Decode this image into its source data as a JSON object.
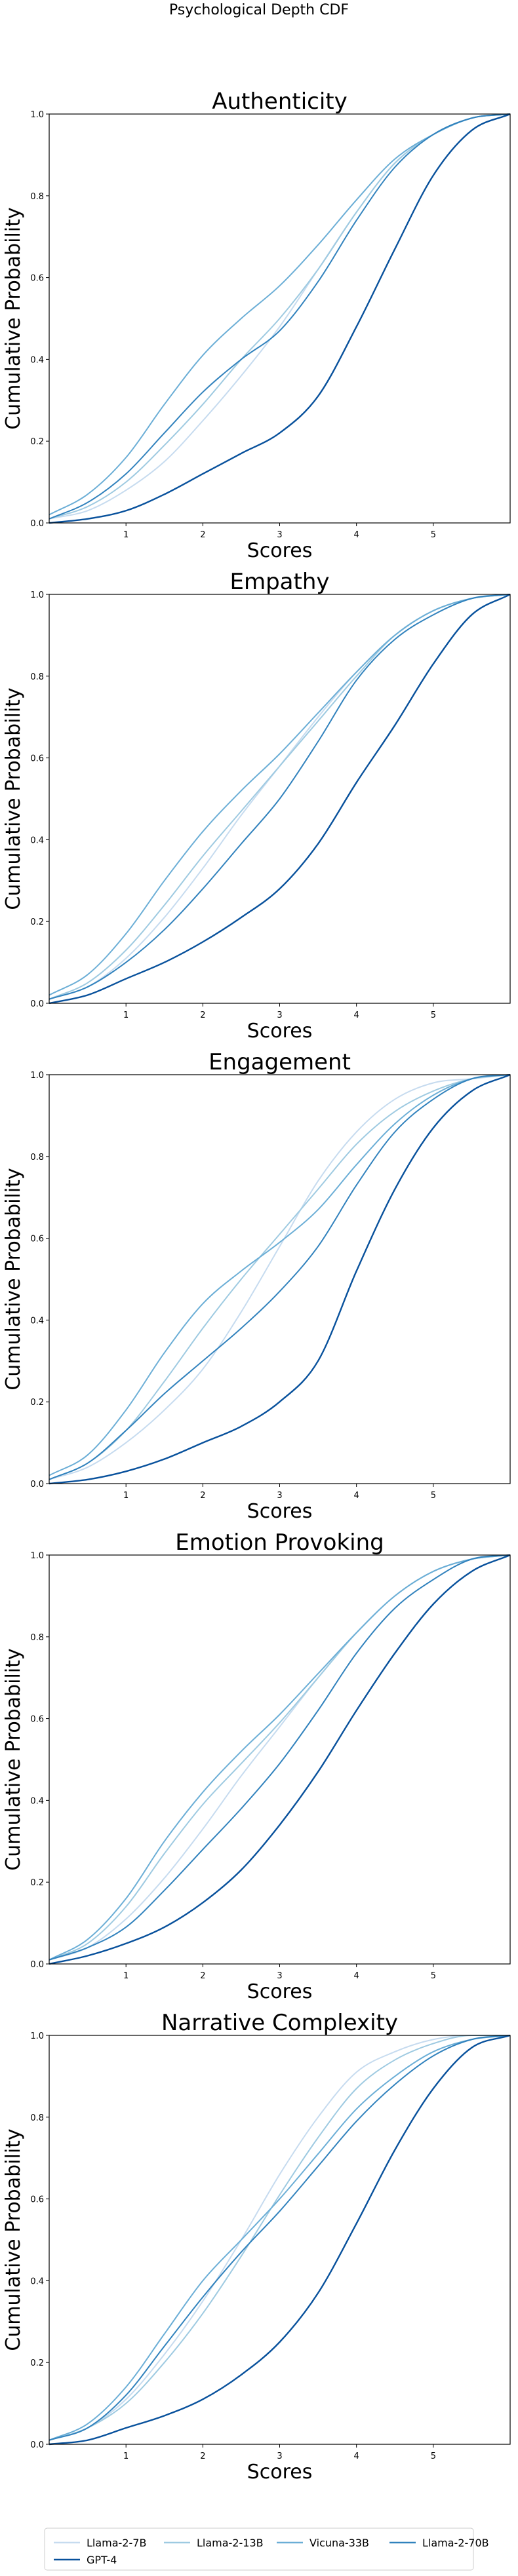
{
  "figure": {
    "suptitle": "Psychological Depth CDF"
  },
  "legend": {
    "placement": "bottom-center",
    "columns": 4,
    "entries": [
      {
        "name": "Llama-2-7B",
        "color": "#c6dbef"
      },
      {
        "name": "Llama-2-13B",
        "color": "#9ecae1"
      },
      {
        "name": "Vicuna-33B",
        "color": "#6baed6"
      },
      {
        "name": "Llama-2-70B",
        "color": "#3182bd"
      },
      {
        "name": "GPT-4",
        "color": "#08519c"
      }
    ]
  },
  "chart_data": [
    {
      "type": "line",
      "title": "Authenticity",
      "xlabel": "Scores",
      "ylabel": "Cumulative Probability",
      "xlim": [
        0,
        6
      ],
      "ylim": [
        0,
        1
      ],
      "xticks": [
        "1",
        "2",
        "3",
        "4",
        "5"
      ],
      "yticks": [
        "0.0",
        "0.2",
        "0.4",
        "0.6",
        "0.8",
        "1.0"
      ],
      "grid": false,
      "x": [
        0,
        0.5,
        1,
        1.5,
        2,
        2.5,
        3,
        3.5,
        4,
        4.5,
        5,
        5.5,
        6
      ],
      "series": [
        {
          "name": "Llama-2-7B",
          "color": "#c6dbef",
          "values": [
            0.01,
            0.03,
            0.08,
            0.15,
            0.25,
            0.36,
            0.48,
            0.62,
            0.76,
            0.88,
            0.95,
            0.99,
            1.0
          ]
        },
        {
          "name": "Llama-2-13B",
          "color": "#9ecae1",
          "values": [
            0.01,
            0.04,
            0.1,
            0.19,
            0.29,
            0.4,
            0.5,
            0.62,
            0.76,
            0.88,
            0.95,
            0.99,
            1.0
          ]
        },
        {
          "name": "Vicuna-33B",
          "color": "#6baed6",
          "values": [
            0.02,
            0.07,
            0.16,
            0.29,
            0.41,
            0.5,
            0.58,
            0.68,
            0.79,
            0.89,
            0.95,
            0.99,
            1.0
          ]
        },
        {
          "name": "Llama-2-70B",
          "color": "#3182bd",
          "values": [
            0.01,
            0.05,
            0.12,
            0.22,
            0.32,
            0.4,
            0.47,
            0.59,
            0.74,
            0.87,
            0.95,
            0.99,
            1.0
          ]
        },
        {
          "name": "GPT-4",
          "color": "#08519c",
          "values": [
            0.0,
            0.01,
            0.03,
            0.07,
            0.12,
            0.17,
            0.22,
            0.31,
            0.48,
            0.67,
            0.85,
            0.96,
            1.0
          ]
        }
      ]
    },
    {
      "type": "line",
      "title": "Empathy",
      "xlabel": "Scores",
      "ylabel": "Cumulative Probability",
      "xlim": [
        0,
        6
      ],
      "ylim": [
        0,
        1
      ],
      "xticks": [
        "1",
        "2",
        "3",
        "4",
        "5"
      ],
      "yticks": [
        "0.0",
        "0.2",
        "0.4",
        "0.6",
        "0.8",
        "1.0"
      ],
      "grid": false,
      "x": [
        0,
        0.5,
        1,
        1.5,
        2,
        2.5,
        3,
        3.5,
        4,
        4.5,
        5,
        5.5,
        6
      ],
      "series": [
        {
          "name": "Llama-2-7B",
          "color": "#c6dbef",
          "values": [
            0.01,
            0.04,
            0.11,
            0.21,
            0.33,
            0.46,
            0.58,
            0.7,
            0.81,
            0.9,
            0.96,
            0.99,
            1.0
          ]
        },
        {
          "name": "Llama-2-13B",
          "color": "#9ecae1",
          "values": [
            0.01,
            0.05,
            0.13,
            0.24,
            0.36,
            0.47,
            0.58,
            0.69,
            0.8,
            0.9,
            0.96,
            0.99,
            1.0
          ]
        },
        {
          "name": "Vicuna-33B",
          "color": "#6baed6",
          "values": [
            0.02,
            0.07,
            0.17,
            0.3,
            0.42,
            0.52,
            0.61,
            0.71,
            0.81,
            0.9,
            0.96,
            0.99,
            1.0
          ]
        },
        {
          "name": "Llama-2-70B",
          "color": "#3182bd",
          "values": [
            0.01,
            0.04,
            0.1,
            0.18,
            0.28,
            0.39,
            0.5,
            0.64,
            0.79,
            0.89,
            0.95,
            0.99,
            1.0
          ]
        },
        {
          "name": "GPT-4",
          "color": "#08519c",
          "values": [
            0.0,
            0.02,
            0.06,
            0.1,
            0.15,
            0.21,
            0.28,
            0.39,
            0.54,
            0.68,
            0.83,
            0.95,
            1.0
          ]
        }
      ]
    },
    {
      "type": "line",
      "title": "Engagement",
      "xlabel": "Scores",
      "ylabel": "Cumulative Probability",
      "xlim": [
        0,
        6
      ],
      "ylim": [
        0,
        1
      ],
      "xticks": [
        "1",
        "2",
        "3",
        "4",
        "5"
      ],
      "yticks": [
        "0.0",
        "0.2",
        "0.4",
        "0.6",
        "0.8",
        "1.0"
      ],
      "grid": false,
      "x": [
        0,
        0.5,
        1,
        1.5,
        2,
        2.5,
        3,
        3.5,
        4,
        4.5,
        5,
        5.5,
        6
      ],
      "series": [
        {
          "name": "Llama-2-7B",
          "color": "#c6dbef",
          "values": [
            0.01,
            0.04,
            0.1,
            0.18,
            0.28,
            0.42,
            0.58,
            0.74,
            0.86,
            0.94,
            0.98,
            0.99,
            1.0
          ]
        },
        {
          "name": "Llama-2-13B",
          "color": "#9ecae1",
          "values": [
            0.01,
            0.05,
            0.13,
            0.25,
            0.38,
            0.5,
            0.61,
            0.72,
            0.83,
            0.91,
            0.96,
            0.99,
            1.0
          ]
        },
        {
          "name": "Vicuna-33B",
          "color": "#6baed6",
          "values": [
            0.02,
            0.07,
            0.18,
            0.32,
            0.44,
            0.52,
            0.59,
            0.67,
            0.78,
            0.88,
            0.95,
            0.99,
            1.0
          ]
        },
        {
          "name": "Llama-2-70B",
          "color": "#3182bd",
          "values": [
            0.01,
            0.05,
            0.13,
            0.22,
            0.3,
            0.38,
            0.47,
            0.58,
            0.73,
            0.86,
            0.94,
            0.99,
            1.0
          ]
        },
        {
          "name": "GPT-4",
          "color": "#08519c",
          "values": [
            0.0,
            0.01,
            0.03,
            0.06,
            0.1,
            0.14,
            0.2,
            0.3,
            0.52,
            0.72,
            0.87,
            0.96,
            1.0
          ]
        }
      ]
    },
    {
      "type": "line",
      "title": "Emotion Provoking",
      "xlabel": "Scores",
      "ylabel": "Cumulative Probability",
      "xlim": [
        0,
        6
      ],
      "ylim": [
        0,
        1
      ],
      "xticks": [
        "1",
        "2",
        "3",
        "4",
        "5"
      ],
      "yticks": [
        "0.0",
        "0.2",
        "0.4",
        "0.6",
        "0.8",
        "1.0"
      ],
      "grid": false,
      "x": [
        0,
        0.5,
        1,
        1.5,
        2,
        2.5,
        3,
        3.5,
        4,
        4.5,
        5,
        5.5,
        6
      ],
      "series": [
        {
          "name": "Llama-2-7B",
          "color": "#c6dbef",
          "values": [
            0.01,
            0.04,
            0.11,
            0.21,
            0.33,
            0.46,
            0.58,
            0.7,
            0.81,
            0.9,
            0.96,
            0.99,
            1.0
          ]
        },
        {
          "name": "Llama-2-13B",
          "color": "#9ecae1",
          "values": [
            0.01,
            0.05,
            0.14,
            0.27,
            0.39,
            0.49,
            0.59,
            0.7,
            0.81,
            0.9,
            0.96,
            0.99,
            1.0
          ]
        },
        {
          "name": "Vicuna-33B",
          "color": "#6baed6",
          "values": [
            0.01,
            0.06,
            0.16,
            0.3,
            0.42,
            0.52,
            0.61,
            0.71,
            0.81,
            0.9,
            0.96,
            0.99,
            1.0
          ]
        },
        {
          "name": "Llama-2-70B",
          "color": "#3182bd",
          "values": [
            0.01,
            0.04,
            0.09,
            0.18,
            0.28,
            0.38,
            0.49,
            0.62,
            0.76,
            0.87,
            0.94,
            0.99,
            1.0
          ]
        },
        {
          "name": "GPT-4",
          "color": "#08519c",
          "values": [
            0.0,
            0.02,
            0.05,
            0.09,
            0.15,
            0.23,
            0.34,
            0.47,
            0.62,
            0.76,
            0.88,
            0.96,
            1.0
          ]
        }
      ]
    },
    {
      "type": "line",
      "title": "Narrative Complexity",
      "xlabel": "Scores",
      "ylabel": "Cumulative Probability",
      "xlim": [
        0,
        6
      ],
      "ylim": [
        0,
        1
      ],
      "xticks": [
        "1",
        "2",
        "3",
        "4",
        "5"
      ],
      "yticks": [
        "0.0",
        "0.2",
        "0.4",
        "0.6",
        "0.8",
        "1.0"
      ],
      "grid": false,
      "x": [
        0,
        0.5,
        1,
        1.5,
        2,
        2.5,
        3,
        3.5,
        4,
        4.5,
        5,
        5.5,
        6
      ],
      "series": [
        {
          "name": "Llama-2-7B",
          "color": "#c6dbef",
          "values": [
            0.01,
            0.04,
            0.11,
            0.22,
            0.35,
            0.5,
            0.66,
            0.8,
            0.91,
            0.96,
            0.99,
            1.0,
            1.0
          ]
        },
        {
          "name": "Llama-2-13B",
          "color": "#9ecae1",
          "values": [
            0.01,
            0.04,
            0.1,
            0.2,
            0.32,
            0.46,
            0.61,
            0.75,
            0.87,
            0.94,
            0.98,
            1.0,
            1.0
          ]
        },
        {
          "name": "Vicuna-33B",
          "color": "#6baed6",
          "values": [
            0.01,
            0.05,
            0.14,
            0.27,
            0.4,
            0.5,
            0.6,
            0.71,
            0.82,
            0.9,
            0.96,
            0.99,
            1.0
          ]
        },
        {
          "name": "Llama-2-70B",
          "color": "#3182bd",
          "values": [
            0.01,
            0.04,
            0.12,
            0.24,
            0.36,
            0.47,
            0.57,
            0.68,
            0.79,
            0.88,
            0.95,
            0.99,
            1.0
          ]
        },
        {
          "name": "GPT-4",
          "color": "#08519c",
          "values": [
            0.0,
            0.01,
            0.04,
            0.07,
            0.11,
            0.17,
            0.25,
            0.37,
            0.54,
            0.72,
            0.87,
            0.97,
            1.0
          ]
        }
      ]
    }
  ]
}
